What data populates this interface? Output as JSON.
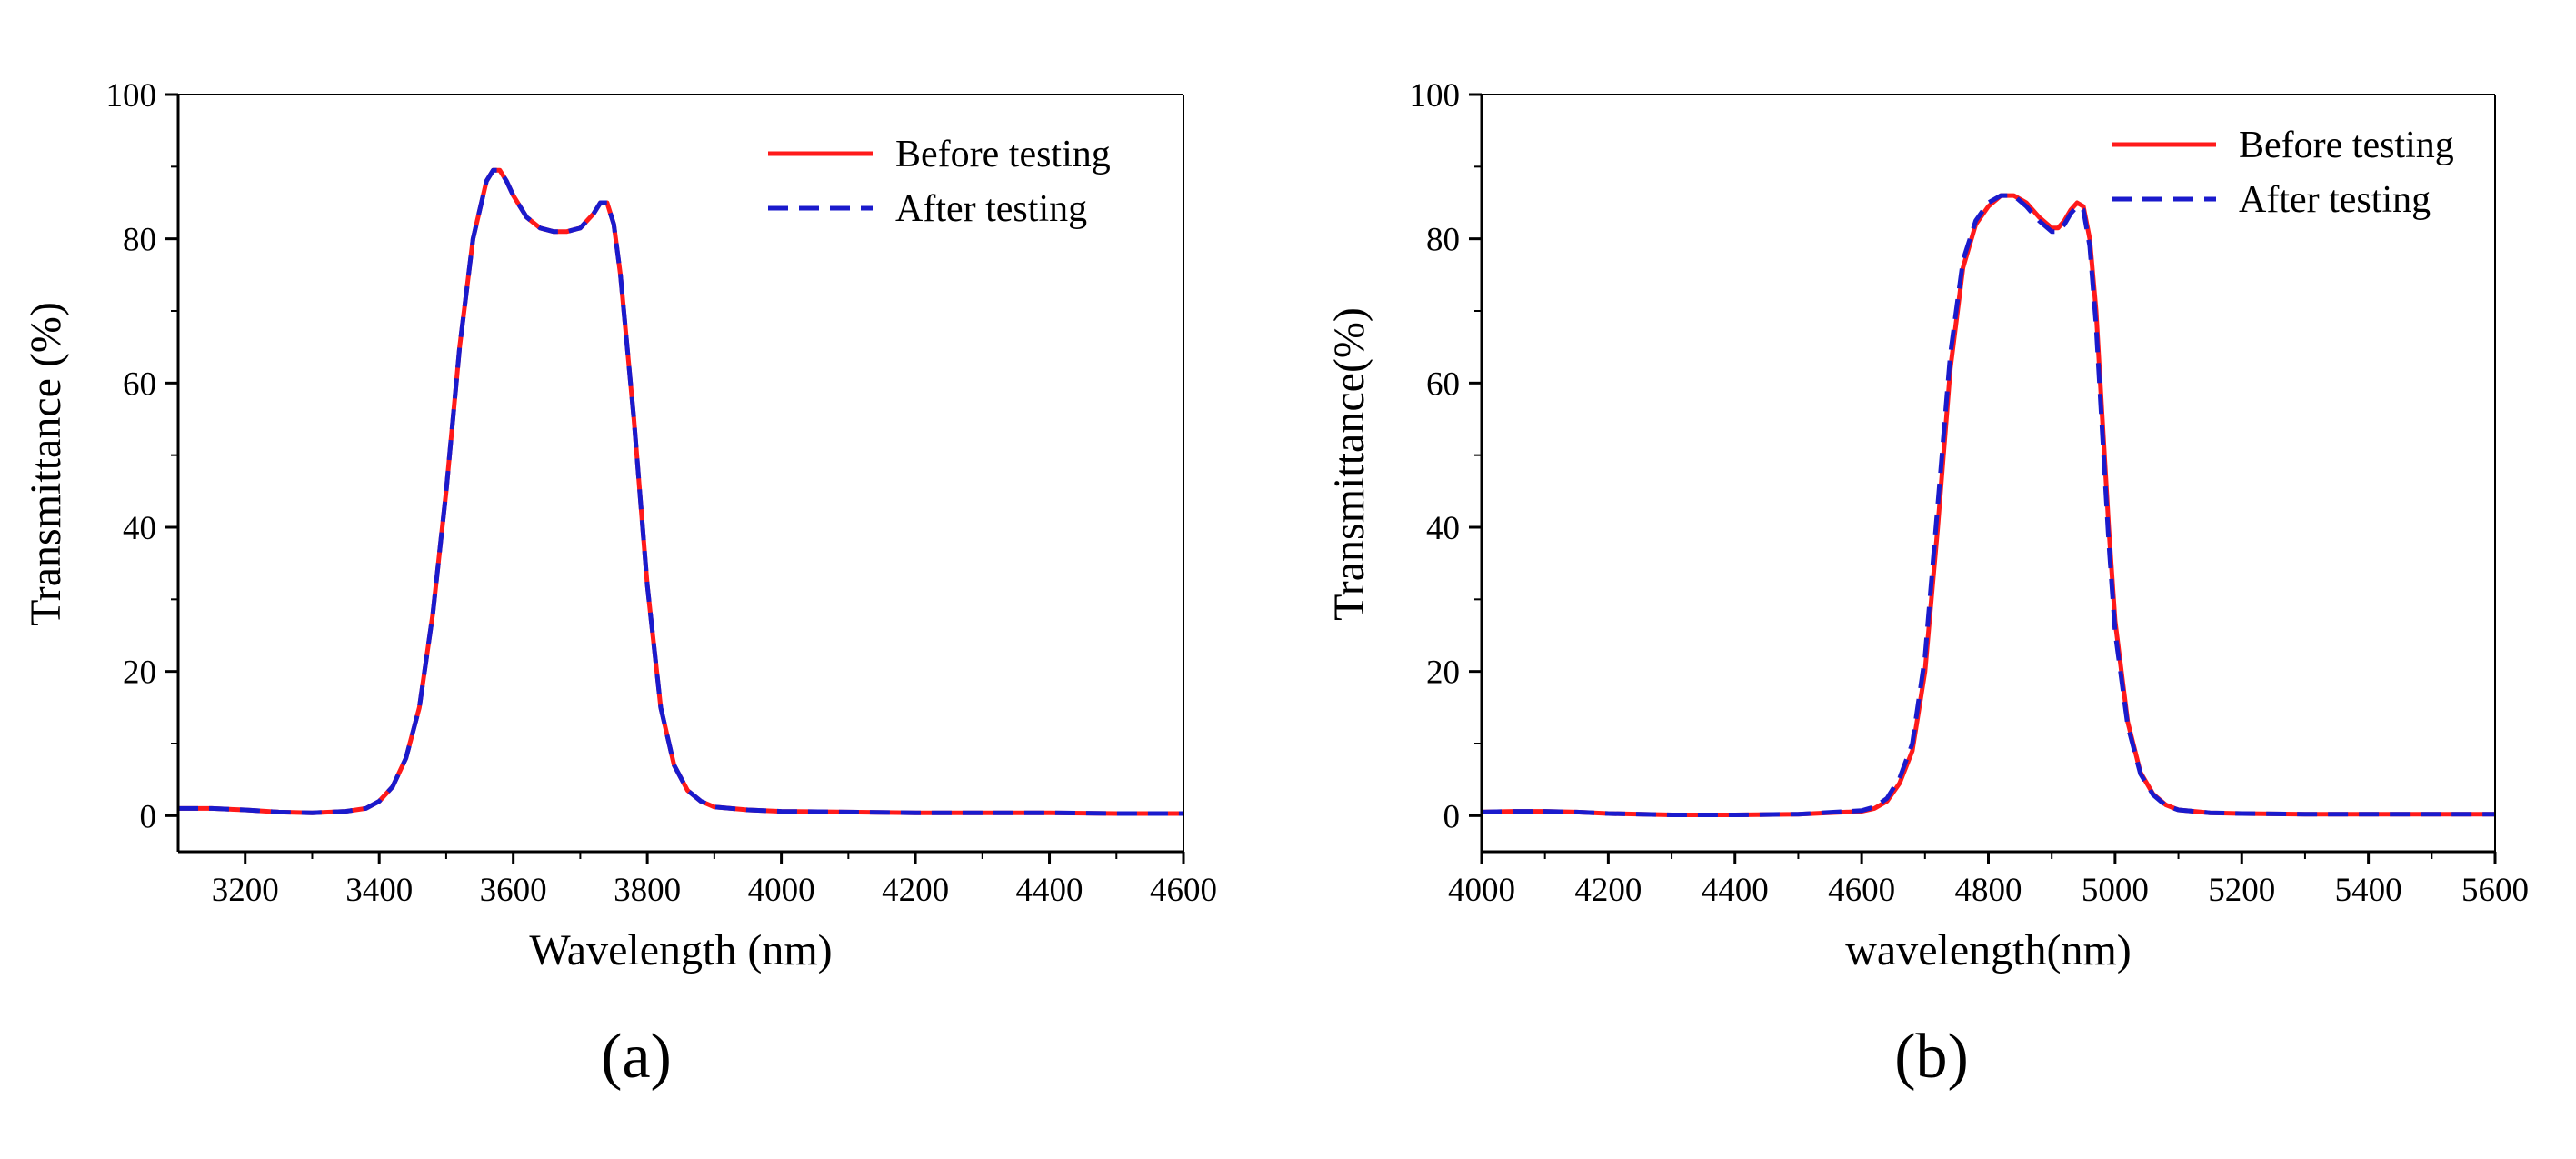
{
  "colors": {
    "before": "#ff1a1a",
    "after": "#1a1acc",
    "axis": "#000000"
  },
  "chart_data": [
    {
      "type": "line",
      "panel_label": "(a)",
      "xlabel": "Wavelength (nm)",
      "ylabel": "Transmittance (%)",
      "xlim": [
        3100,
        4600
      ],
      "ylim": [
        -5,
        100
      ],
      "x_ticks": [
        3200,
        3400,
        3600,
        3800,
        4000,
        4200,
        4400,
        4600
      ],
      "y_ticks": [
        0,
        20,
        40,
        60,
        80,
        100
      ],
      "x_tick_labels": [
        "3200",
        "3400",
        "3600",
        "3800",
        "4000",
        "4200",
        "4400",
        "4600"
      ],
      "y_tick_labels": [
        "0",
        "20",
        "40",
        "60",
        "80",
        "100"
      ],
      "legend": [
        "Before testing",
        "After testing"
      ],
      "legend_position": "top-right",
      "grid": false,
      "series": [
        {
          "name": "Before testing",
          "style": "solid",
          "x": [
            3100,
            3150,
            3200,
            3250,
            3300,
            3350,
            3380,
            3400,
            3420,
            3440,
            3460,
            3480,
            3500,
            3520,
            3540,
            3560,
            3570,
            3580,
            3590,
            3600,
            3620,
            3640,
            3660,
            3680,
            3700,
            3720,
            3730,
            3740,
            3750,
            3760,
            3780,
            3800,
            3820,
            3840,
            3860,
            3880,
            3900,
            3950,
            4000,
            4100,
            4200,
            4300,
            4400,
            4500,
            4600
          ],
          "y": [
            1.0,
            1.0,
            0.8,
            0.5,
            0.4,
            0.6,
            1.0,
            2.0,
            4.0,
            8.0,
            15.0,
            28.0,
            45.0,
            65.0,
            80.0,
            88.0,
            89.5,
            89.5,
            88.0,
            86.0,
            83.0,
            81.5,
            81.0,
            81.0,
            81.5,
            83.5,
            85.0,
            85.0,
            82.0,
            75.0,
            55.0,
            32.0,
            15.0,
            7.0,
            3.5,
            2.0,
            1.2,
            0.8,
            0.6,
            0.5,
            0.4,
            0.4,
            0.4,
            0.3,
            0.3
          ]
        },
        {
          "name": "After testing",
          "style": "dashed",
          "x": [
            3100,
            3150,
            3200,
            3250,
            3300,
            3350,
            3380,
            3400,
            3420,
            3440,
            3460,
            3480,
            3500,
            3520,
            3540,
            3560,
            3570,
            3580,
            3590,
            3600,
            3620,
            3640,
            3660,
            3680,
            3700,
            3720,
            3730,
            3740,
            3750,
            3760,
            3780,
            3800,
            3820,
            3840,
            3860,
            3880,
            3900,
            3950,
            4000,
            4100,
            4200,
            4300,
            4400,
            4500,
            4600
          ],
          "y": [
            1.0,
            1.0,
            0.8,
            0.5,
            0.4,
            0.6,
            1.0,
            2.0,
            4.0,
            8.0,
            15.0,
            28.0,
            45.0,
            65.0,
            80.0,
            88.0,
            89.5,
            89.5,
            88.0,
            86.0,
            83.0,
            81.5,
            81.0,
            81.0,
            81.5,
            83.5,
            85.0,
            85.0,
            82.0,
            75.0,
            55.0,
            32.0,
            15.0,
            7.0,
            3.5,
            2.0,
            1.2,
            0.8,
            0.6,
            0.5,
            0.4,
            0.4,
            0.4,
            0.3,
            0.3
          ]
        }
      ]
    },
    {
      "type": "line",
      "panel_label": "(b)",
      "xlabel": "wavelength(nm)",
      "ylabel": "Transmittance(%)",
      "xlim": [
        4000,
        5600
      ],
      "ylim": [
        -5,
        100
      ],
      "x_ticks": [
        4000,
        4200,
        4400,
        4600,
        4800,
        5000,
        5200,
        5400,
        5600
      ],
      "y_ticks": [
        0,
        20,
        40,
        60,
        80,
        100
      ],
      "x_tick_labels": [
        "4000",
        "4200",
        "4400",
        "4600",
        "4800",
        "5000",
        "5200",
        "5400",
        "5600"
      ],
      "y_tick_labels": [
        "0",
        "20",
        "40",
        "60",
        "80",
        "100"
      ],
      "legend": [
        "Before testing",
        "After testing"
      ],
      "legend_position": "top-right",
      "grid": false,
      "series": [
        {
          "name": "Before testing",
          "style": "solid",
          "x": [
            4000,
            4050,
            4100,
            4150,
            4200,
            4300,
            4400,
            4500,
            4600,
            4620,
            4640,
            4660,
            4680,
            4700,
            4720,
            4740,
            4760,
            4780,
            4800,
            4820,
            4840,
            4860,
            4880,
            4900,
            4910,
            4920,
            4930,
            4940,
            4950,
            4960,
            4970,
            4980,
            4990,
            5000,
            5020,
            5040,
            5060,
            5080,
            5100,
            5150,
            5200,
            5300,
            5400,
            5500,
            5600
          ],
          "y": [
            0.5,
            0.6,
            0.6,
            0.5,
            0.3,
            0.1,
            0.1,
            0.2,
            0.6,
            1.0,
            2.0,
            4.5,
            9.0,
            20.0,
            40.0,
            62.0,
            76.0,
            82.0,
            84.5,
            86.0,
            86.0,
            85.0,
            83.0,
            81.5,
            81.5,
            82.5,
            84.0,
            85.0,
            84.5,
            80.0,
            70.0,
            55.0,
            40.0,
            27.0,
            13.0,
            6.0,
            3.0,
            1.5,
            0.8,
            0.4,
            0.3,
            0.2,
            0.2,
            0.2,
            0.2
          ]
        },
        {
          "name": "After testing",
          "style": "dashed",
          "x": [
            4000,
            4050,
            4100,
            4150,
            4200,
            4300,
            4400,
            4500,
            4600,
            4620,
            4640,
            4660,
            4680,
            4700,
            4720,
            4740,
            4760,
            4780,
            4800,
            4820,
            4840,
            4860,
            4880,
            4900,
            4910,
            4920,
            4930,
            4940,
            4950,
            4960,
            4970,
            4980,
            4990,
            5000,
            5020,
            5040,
            5060,
            5080,
            5100,
            5150,
            5200,
            5300,
            5400,
            5500,
            5600
          ],
          "y": [
            0.5,
            0.6,
            0.6,
            0.5,
            0.3,
            0.1,
            0.1,
            0.2,
            0.7,
            1.2,
            2.4,
            5.2,
            10.0,
            22.0,
            43.0,
            64.0,
            77.0,
            82.5,
            85.0,
            86.0,
            86.0,
            84.5,
            82.5,
            81.0,
            81.0,
            82.0,
            83.5,
            84.5,
            84.0,
            79.0,
            68.0,
            53.0,
            38.0,
            25.5,
            12.5,
            5.8,
            2.9,
            1.4,
            0.8,
            0.4,
            0.3,
            0.2,
            0.2,
            0.2,
            0.2
          ]
        }
      ]
    }
  ]
}
